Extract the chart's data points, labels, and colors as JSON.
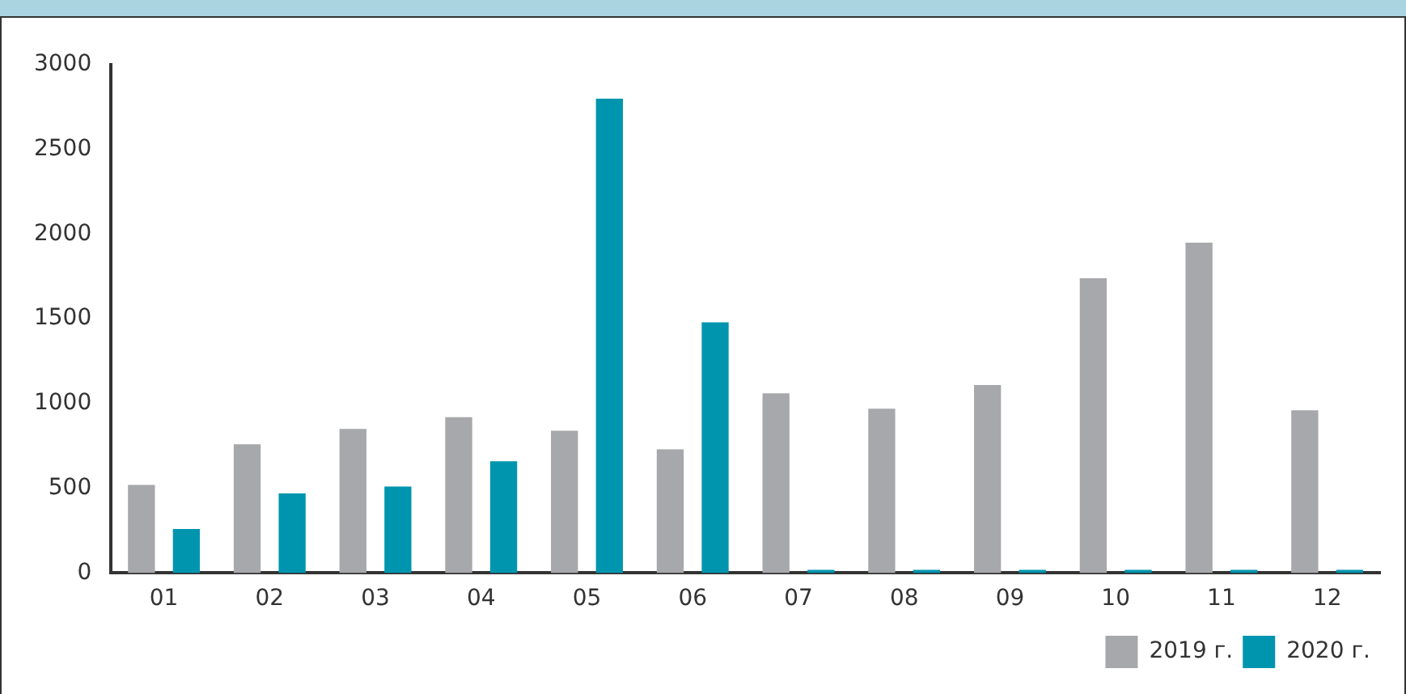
{
  "chart_data": {
    "type": "bar",
    "categories": [
      "01",
      "02",
      "03",
      "04",
      "05",
      "06",
      "07",
      "08",
      "09",
      "10",
      "11",
      "12"
    ],
    "series": [
      {
        "name": "2019 г.",
        "color": "#a7a8ab",
        "values": [
          520,
          760,
          850,
          920,
          840,
          730,
          1060,
          970,
          1110,
          1740,
          1950,
          960
        ]
      },
      {
        "name": "2020 г.",
        "color": "#0095ae",
        "values": [
          260,
          470,
          510,
          660,
          2800,
          1480,
          0,
          0,
          0,
          0,
          0,
          0
        ]
      }
    ],
    "ylim": [
      0,
      3000
    ],
    "yticks": [
      0,
      500,
      1000,
      1500,
      2000,
      2500,
      3000
    ],
    "grid": false,
    "legend": "bottom right"
  }
}
